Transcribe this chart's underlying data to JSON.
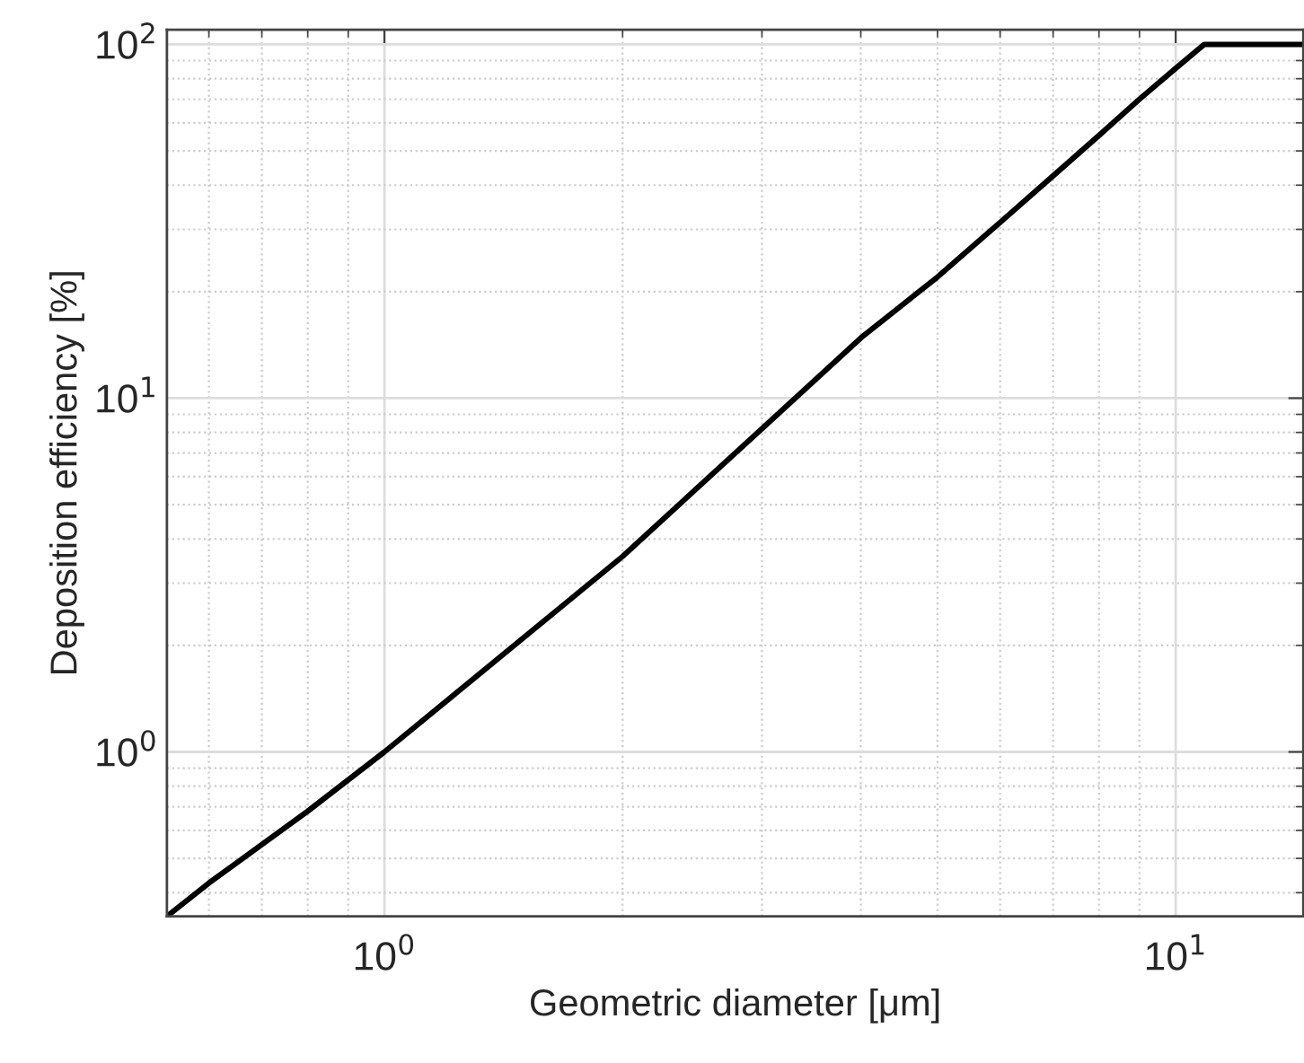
{
  "chart_data": {
    "type": "line",
    "xlabel": "Geometric diameter [μm]",
    "ylabel": "Deposition efficiency [%]",
    "log": "xy",
    "grid": true,
    "marker": "none",
    "line_style": "solid",
    "xlim": [
      0.531,
      14.5
    ],
    "ylim": [
      0.343,
      110
    ],
    "xticks": [
      {
        "value": 1,
        "label": "10$^{0}$"
      },
      {
        "value": 10,
        "label": "10$^{1}$"
      }
    ],
    "yticks": [
      {
        "value": 1,
        "label": "10$^{0}$"
      },
      {
        "value": 10,
        "label": "10$^{1}$"
      },
      {
        "value": 100,
        "label": "10$^{2}$"
      }
    ],
    "series": [
      {
        "color": "#000000",
        "x": [
          0.531,
          0.6,
          0.8,
          1,
          2,
          3,
          4,
          5,
          6,
          7,
          8,
          9,
          10,
          10.87,
          14.5
        ],
        "values": [
          0.343,
          0.426,
          0.68,
          1.0,
          3.57,
          8.2,
          14.8,
          22,
          31.4,
          42.5,
          55.3,
          70,
          85.6,
          100,
          100
        ]
      }
    ]
  }
}
